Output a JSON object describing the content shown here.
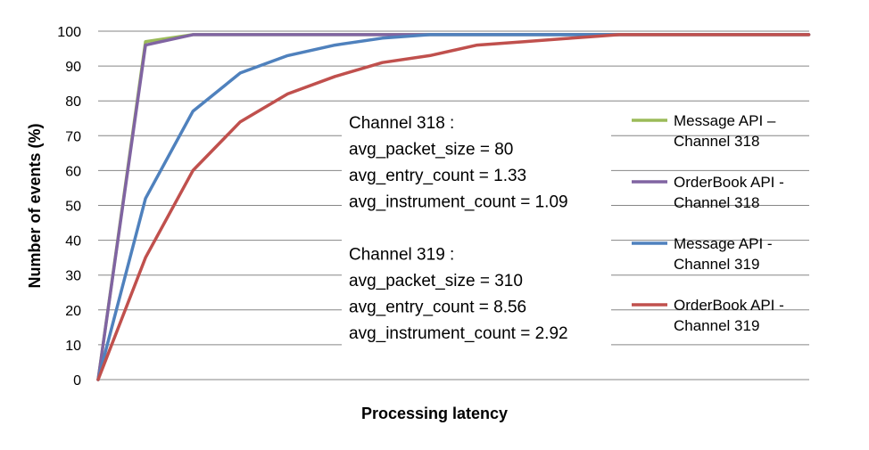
{
  "chart_data": {
    "type": "line",
    "title": "",
    "xlabel": "Processing latency",
    "ylabel": "Number of events (%)",
    "ylim": [
      0,
      100
    ],
    "yticks": [
      0,
      10,
      20,
      30,
      40,
      50,
      60,
      70,
      80,
      90,
      100
    ],
    "grid": "horizontal",
    "legend_position": "right",
    "x": [
      0,
      1,
      2,
      3,
      4,
      5,
      6,
      7,
      8,
      9,
      10,
      11,
      12,
      13,
      14,
      15
    ],
    "series": [
      {
        "name": "Message API – Channel 318",
        "legend_lines": [
          "Message API –",
          "Channel 318"
        ],
        "color": "#9bbb59",
        "values": [
          0,
          97,
          99,
          99,
          99,
          99,
          99,
          99,
          99,
          99,
          99,
          99,
          99,
          99,
          99,
          99
        ]
      },
      {
        "name": "OrderBook API - Channel 318",
        "legend_lines": [
          "OrderBook API -",
          "Channel 318"
        ],
        "color": "#8064a2",
        "values": [
          0,
          96,
          99,
          99,
          99,
          99,
          99,
          99,
          99,
          99,
          99,
          99,
          99,
          99,
          99,
          99
        ]
      },
      {
        "name": "Message API - Channel 319",
        "legend_lines": [
          "Message API -",
          "Channel 319"
        ],
        "color": "#4f81bd",
        "values": [
          0,
          52,
          77,
          88,
          93,
          96,
          98,
          99,
          99,
          99,
          99,
          99,
          99,
          99,
          99,
          99
        ]
      },
      {
        "name": "OrderBook API - Channel 319",
        "legend_lines": [
          "OrderBook API -",
          "Channel 319"
        ],
        "color": "#c0504d",
        "values": [
          0,
          35,
          60,
          74,
          82,
          87,
          91,
          93,
          96,
          97,
          98,
          99,
          99,
          99,
          99,
          99
        ]
      }
    ],
    "annotations": [
      "Channel 318 :",
      "avg_packet_size = 80",
      "avg_entry_count = 1.33",
      "avg_instrument_count = 1.09",
      "",
      "Channel 319 :",
      "avg_packet_size = 310",
      "avg_entry_count = 8.56",
      "avg_instrument_count = 2.92"
    ]
  }
}
